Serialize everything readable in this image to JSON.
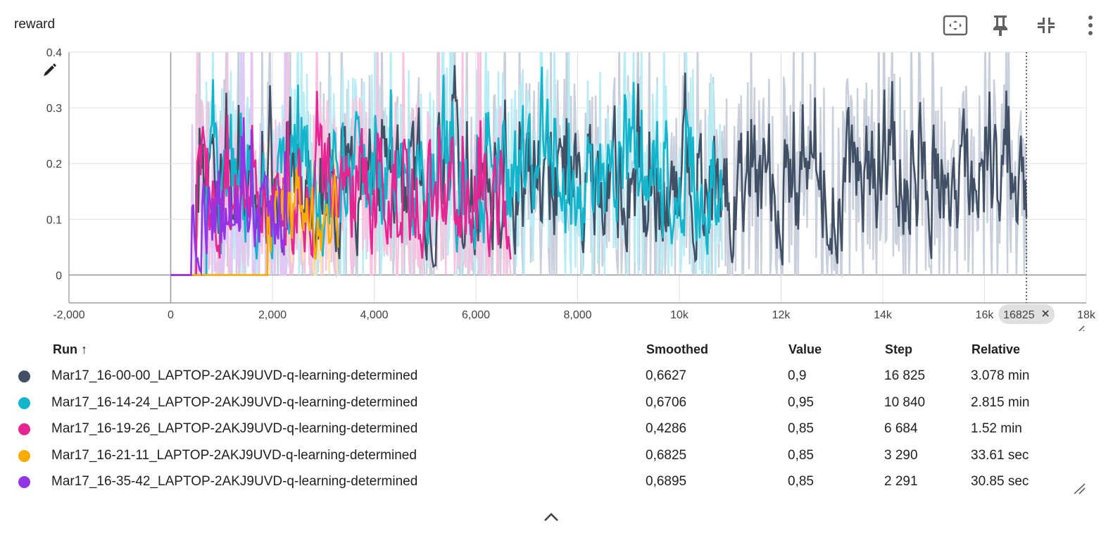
{
  "card": {
    "title": "reward",
    "toolbar": {
      "fit_icon": "fit-domain-icon",
      "pin_icon": "pin-icon",
      "collapse_icon": "collapse-icon",
      "menu_icon": "more-vert-icon"
    }
  },
  "chart_data": {
    "type": "line",
    "title": "",
    "xlabel": "",
    "ylabel": "",
    "xlim": [
      -2000,
      18000
    ],
    "ylim": [
      -0.05,
      0.4
    ],
    "x_ticks": [
      -2000,
      0,
      2000,
      4000,
      6000,
      8000,
      10000,
      12000,
      14000,
      16000,
      18000
    ],
    "x_tick_labels": [
      "-2,000",
      "0",
      "2,000",
      "4,000",
      "6,000",
      "8,000",
      "10k",
      "12k",
      "14k",
      "16k",
      "18k"
    ],
    "y_ticks": [
      0,
      0.1,
      0.2,
      0.3,
      0.4
    ],
    "y_tick_labels": [
      "0",
      "0.1",
      "0.2",
      "0.3",
      "0.4"
    ],
    "grid": true,
    "legend": "table-below",
    "cursor_step": 16825,
    "cursor_label": "16825",
    "series": [
      {
        "run": "Mar17_16-00-00",
        "color": "#425066",
        "raw_color": "#c9d0dc",
        "x_start": 500,
        "x_end": 16825,
        "level": 0.17,
        "amplitude": 0.12,
        "seed": 11
      },
      {
        "run": "Mar17_16-14-24",
        "color": "#12b5cb",
        "raw_color": "#b9ecf4",
        "x_start": 700,
        "x_end": 10840,
        "level": 0.18,
        "amplitude": 0.12,
        "seed": 23
      },
      {
        "run": "Mar17_16-19-26",
        "color": "#e52592",
        "raw_color": "#f7c4e0",
        "x_start": 500,
        "x_end": 6684,
        "level": 0.15,
        "amplitude": 0.11,
        "seed": 37
      },
      {
        "run": "Mar17_16-21-11",
        "color": "#f9ab00",
        "raw_color": "#fde4b0",
        "x_start": 1900,
        "x_end": 3290,
        "level": 0.1,
        "amplitude": 0.09,
        "seed": 41
      },
      {
        "run": "Mar17_16-35-42",
        "color": "#9334e6",
        "raw_color": "#dec8f6",
        "x_start": 400,
        "x_end": 2291,
        "level": 0.12,
        "amplitude": 0.1,
        "seed": 53
      }
    ]
  },
  "table": {
    "headers": {
      "run": "Run ↑",
      "smoothed": "Smoothed",
      "value": "Value",
      "step": "Step",
      "relative": "Relative"
    },
    "rows": [
      {
        "color": "#425066",
        "run": "Mar17_16-00-00_LAPTOP-2AKJ9UVD-q-learning-determined",
        "smoothed": "0,6627",
        "value": "0,9",
        "step": "16 825",
        "relative": "3.078 min"
      },
      {
        "color": "#12b5cb",
        "run": "Mar17_16-14-24_LAPTOP-2AKJ9UVD-q-learning-determined",
        "smoothed": "0,6706",
        "value": "0,95",
        "step": "10 840",
        "relative": "2.815 min"
      },
      {
        "color": "#e52592",
        "run": "Mar17_16-19-26_LAPTOP-2AKJ9UVD-q-learning-determined",
        "smoothed": "0,4286",
        "value": "0,85",
        "step": "6 684",
        "relative": "1.52 min"
      },
      {
        "color": "#f9ab00",
        "run": "Mar17_16-21-11_LAPTOP-2AKJ9UVD-q-learning-determined",
        "smoothed": "0,6825",
        "value": "0,85",
        "step": "3 290",
        "relative": "33.61 sec"
      },
      {
        "color": "#9334e6",
        "run": "Mar17_16-35-42_LAPTOP-2AKJ9UVD-q-learning-determined",
        "smoothed": "0,6895",
        "value": "0,85",
        "step": "2 291",
        "relative": "30.85 sec"
      }
    ]
  },
  "footer": {
    "expand_icon": "chevron-up-icon"
  }
}
